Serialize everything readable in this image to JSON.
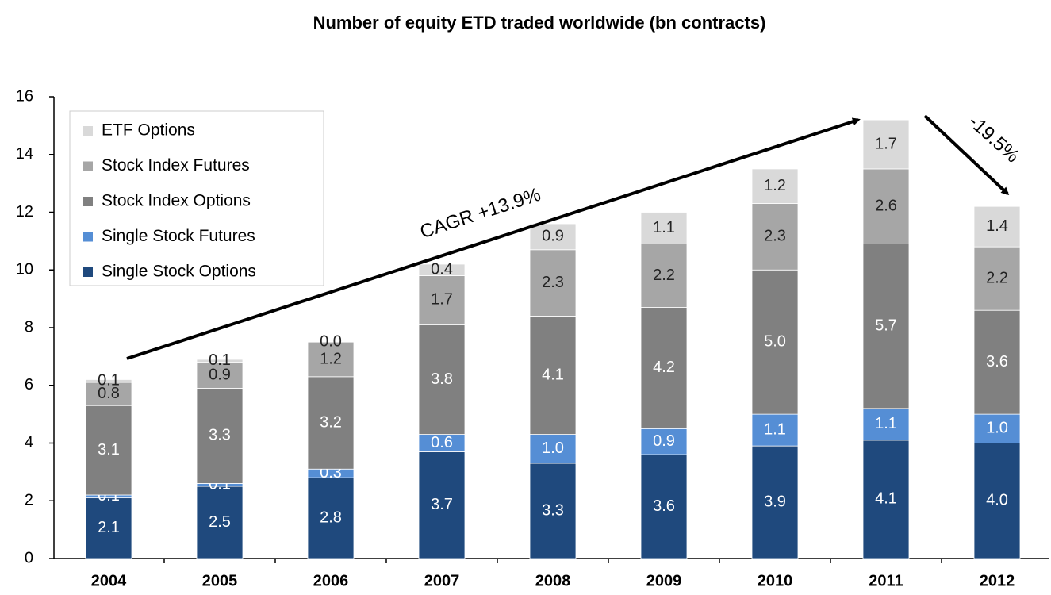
{
  "chart_data": {
    "type": "stacked_bar",
    "title": "Number of equity ETD traded worldwide (bn contracts)",
    "categories": [
      "2004",
      "2005",
      "2006",
      "2007",
      "2008",
      "2009",
      "2010",
      "2011",
      "2012"
    ],
    "series": [
      {
        "name": "Single Stock Options",
        "color": "#1f497d",
        "values": [
          2.1,
          2.5,
          2.8,
          3.7,
          3.3,
          3.6,
          3.9,
          4.1,
          4.0
        ],
        "value_labels": [
          "2.1",
          "2.5",
          "2.8",
          "3.7",
          "3.3",
          "3.6",
          "3.9",
          "4.1",
          "4.0"
        ]
      },
      {
        "name": "Single Stock Futures",
        "color": "#558ed5",
        "values": [
          0.1,
          0.1,
          0.3,
          0.6,
          1.0,
          0.9,
          1.1,
          1.1,
          1.0
        ],
        "value_labels": [
          "0.1",
          "0.1",
          "0.3",
          "0.6",
          "1.0",
          "0.9",
          "1.1",
          "1.1",
          "1.0"
        ]
      },
      {
        "name": "Stock Index Options",
        "color": "#808080",
        "values": [
          3.1,
          3.3,
          3.2,
          3.8,
          4.1,
          4.2,
          5.0,
          5.7,
          3.6
        ],
        "value_labels": [
          "3.1",
          "3.3",
          "3.2",
          "3.8",
          "4.1",
          "4.2",
          "5.0",
          "5.7",
          "3.6"
        ]
      },
      {
        "name": "Stock Index Futures",
        "color": "#a6a6a6",
        "values": [
          0.8,
          0.9,
          1.2,
          1.7,
          2.3,
          2.2,
          2.3,
          2.6,
          2.2
        ],
        "value_labels": [
          "0.8",
          "0.9",
          "1.2",
          "1.7",
          "2.3",
          "2.2",
          "2.3",
          "2.6",
          "2.2"
        ]
      },
      {
        "name": "ETF Options",
        "color": "#d9d9d9",
        "values": [
          0.1,
          0.1,
          0.0,
          0.4,
          0.9,
          1.1,
          1.2,
          1.7,
          1.4
        ],
        "value_labels": [
          "0.1",
          "0.1",
          "0.0",
          "0.4",
          "0.9",
          "1.1",
          "1.2",
          "1.7",
          "1.4"
        ]
      }
    ],
    "ylim": [
      0,
      16
    ],
    "yticks": [
      0,
      2,
      4,
      6,
      8,
      10,
      12,
      14,
      16
    ],
    "legend": "upper left",
    "annotations": [
      "CAGR +13.9%",
      "-19.5%"
    ]
  }
}
